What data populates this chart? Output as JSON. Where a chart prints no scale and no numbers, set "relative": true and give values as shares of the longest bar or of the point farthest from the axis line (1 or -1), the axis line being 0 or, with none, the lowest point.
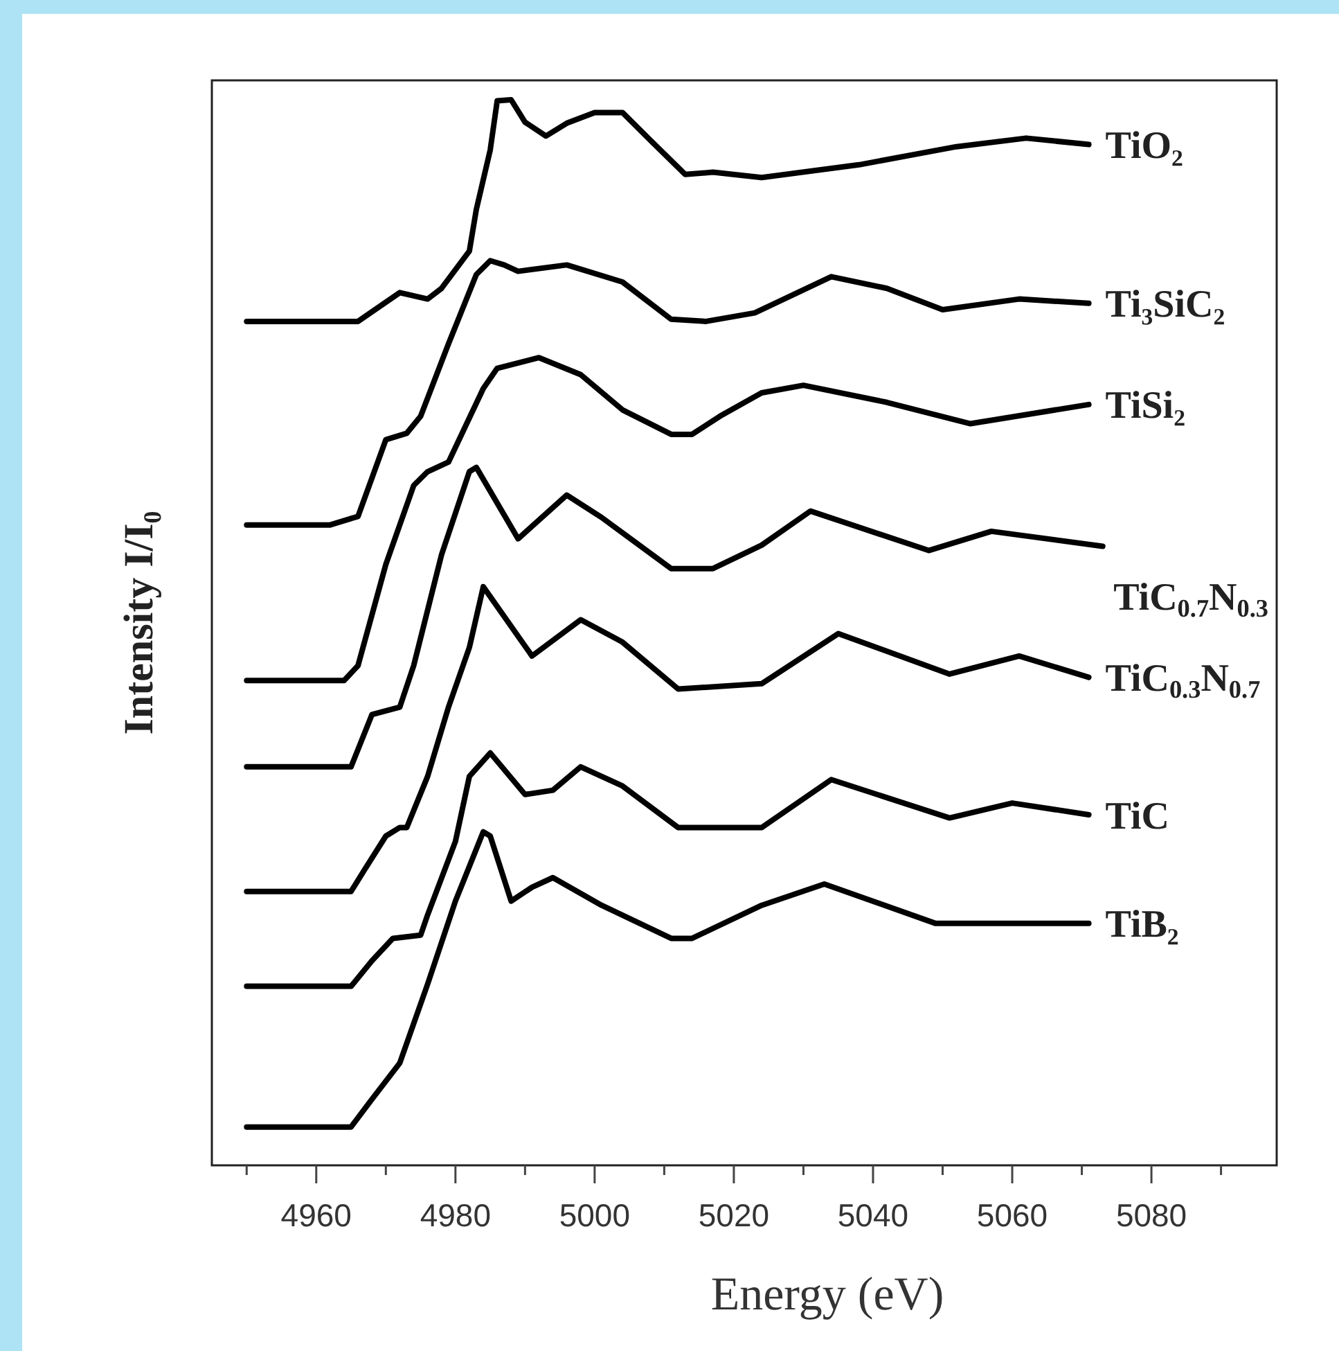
{
  "chart_data": {
    "type": "line",
    "xlabel": "Energy (eV)",
    "ylabel": "Intensity I/I₀",
    "relative": true,
    "legend": false,
    "grid": false,
    "marker": "none",
    "line_style": "solid",
    "xlim": [
      4945,
      5098
    ],
    "xticks": [
      {
        "value": 4950,
        "label": null
      },
      4960,
      {
        "value": 4970,
        "label": null
      },
      4980,
      {
        "value": 4990,
        "label": null
      },
      5000,
      {
        "value": 5010,
        "label": null
      },
      5020,
      {
        "value": 5030,
        "label": null
      },
      5040,
      {
        "value": 5050,
        "label": null
      },
      5060,
      {
        "value": 5070,
        "label": null
      },
      5080,
      {
        "value": 5090,
        "label": null
      }
    ],
    "series": [
      {
        "name": "TiO₂",
        "color": "#000000",
        "x": [
          4950,
          4966,
          4972,
          4976,
          4978,
          4982,
          4983,
          4985,
          4986,
          4988,
          4990,
          4993,
          4996,
          5000,
          5004,
          5008,
          5013,
          5017,
          5024,
          5038,
          5052,
          5062,
          5071
        ],
        "values": [
          0.792,
          0.792,
          0.819,
          0.813,
          0.823,
          0.858,
          0.897,
          0.953,
          0.999,
          1.0,
          0.979,
          0.966,
          0.978,
          0.988,
          0.988,
          0.962,
          0.93,
          0.932,
          0.927,
          0.939,
          0.956,
          0.964,
          0.958
        ]
      },
      {
        "name": "Ti₃SiC₂",
        "color": "#000000",
        "x": [
          4950,
          4962,
          4966,
          4970,
          4973,
          4975,
          4979,
          4983,
          4985,
          4987,
          4989,
          4996,
          5004,
          5011,
          5016,
          5023,
          5034,
          5042,
          5050,
          5061,
          5071
        ],
        "values": [
          0.601,
          0.601,
          0.609,
          0.681,
          0.687,
          0.703,
          0.771,
          0.836,
          0.849,
          0.845,
          0.839,
          0.845,
          0.829,
          0.794,
          0.792,
          0.8,
          0.834,
          0.823,
          0.803,
          0.813,
          0.809
        ]
      },
      {
        "name": "TiSi₂",
        "color": "#000000",
        "x": [
          4950,
          4964,
          4966,
          4970,
          4974,
          4976,
          4979,
          4984,
          4986,
          4992,
          4998,
          5004,
          5011,
          5014,
          5018,
          5024,
          5030,
          5042,
          5054,
          5071
        ],
        "values": [
          0.455,
          0.455,
          0.469,
          0.564,
          0.638,
          0.651,
          0.66,
          0.729,
          0.748,
          0.758,
          0.742,
          0.709,
          0.686,
          0.686,
          0.703,
          0.725,
          0.732,
          0.716,
          0.696,
          0.714
        ]
      },
      {
        "name": "TiC$_{0.7}$N$_{0.3}$",
        "color": "#000000",
        "x": [
          4950,
          4965,
          4968,
          4972,
          4974,
          4978,
          4982,
          4983,
          4989,
          4996,
          5001,
          5011,
          5017,
          5024,
          5031,
          5048,
          5057,
          5073
        ],
        "values": [
          0.374,
          0.374,
          0.423,
          0.43,
          0.469,
          0.573,
          0.651,
          0.655,
          0.588,
          0.629,
          0.608,
          0.56,
          0.56,
          0.582,
          0.614,
          0.577,
          0.595,
          0.581
        ]
      },
      {
        "name": "TiC$_{0.3}$N$_{0.7}$",
        "color": "#000000",
        "x": [
          4950,
          4965,
          4967,
          4970,
          4972,
          4973,
          4976,
          4979,
          4982,
          4984,
          4991,
          4998,
          5004,
          5012,
          5024,
          5035,
          5051,
          5061,
          5071
        ],
        "values": [
          0.257,
          0.257,
          0.278,
          0.309,
          0.317,
          0.317,
          0.365,
          0.43,
          0.486,
          0.543,
          0.478,
          0.512,
          0.491,
          0.447,
          0.452,
          0.499,
          0.461,
          0.478,
          0.458
        ]
      },
      {
        "name": "TiC",
        "color": "#000000",
        "x": [
          4950,
          4965,
          4968,
          4971,
          4975,
          4976,
          4980,
          4982,
          4985,
          4990,
          4994,
          4998,
          5004,
          5012,
          5024,
          5034,
          5051,
          5060,
          5071
        ],
        "values": [
          0.168,
          0.168,
          0.192,
          0.213,
          0.216,
          0.235,
          0.304,
          0.365,
          0.387,
          0.348,
          0.352,
          0.374,
          0.356,
          0.317,
          0.317,
          0.362,
          0.326,
          0.34,
          0.329
        ]
      },
      {
        "name": "TiB₂",
        "color": "#000000",
        "x": [
          4950,
          4965,
          4968,
          4972,
          4976,
          4980,
          4984,
          4985,
          4988,
          4991,
          4994,
          5001,
          5011,
          5014,
          5024,
          5033,
          5049,
          5071
        ],
        "values": [
          0.036,
          0.036,
          0.062,
          0.096,
          0.17,
          0.248,
          0.313,
          0.309,
          0.248,
          0.261,
          0.27,
          0.244,
          0.213,
          0.213,
          0.244,
          0.264,
          0.227,
          0.227
        ]
      }
    ]
  }
}
